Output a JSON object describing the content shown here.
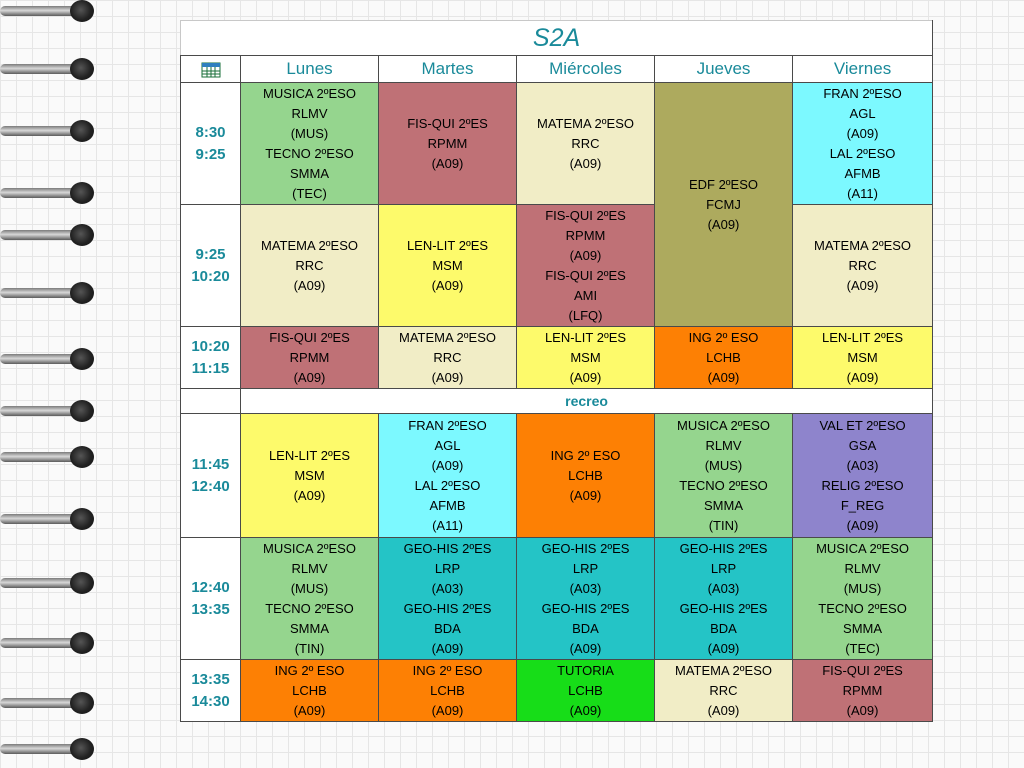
{
  "title": "S2A",
  "days": [
    "Lunes",
    "Martes",
    "Miércoles",
    "Jueves",
    "Viernes"
  ],
  "break_label": "recreo",
  "colors": {
    "green": "#95d58e",
    "rose": "#bf7176",
    "cream": "#f1edc6",
    "olive": "#adaa5e",
    "cyan": "#7cf9ff",
    "yellow": "#fdfa6b",
    "orange": "#fd8004",
    "purple": "#8e84cc",
    "teal": "#24c4c6",
    "bright_green": "#17dd18",
    "accent": "#1a8a9a"
  },
  "rows": [
    {
      "time": [
        "8:30",
        "9:25"
      ],
      "cells": [
        {
          "color": "green",
          "lines": [
            "MUSICA 2ºESO",
            "RLMV",
            "(MUS)",
            "TECNO 2ºESO",
            "SMMA",
            "(TEC)"
          ]
        },
        {
          "color": "rose",
          "lines": [
            "FIS-QUI 2ºES",
            "RPMM",
            "(A09)"
          ]
        },
        {
          "color": "cream",
          "lines": [
            "MATEMA 2ºESO",
            "RRC",
            "(A09)"
          ]
        },
        {
          "color": "olive",
          "rowspan": 2,
          "lines": [
            "EDF 2ºESO",
            "FCMJ",
            "(A09)"
          ]
        },
        {
          "color": "cyan",
          "lines": [
            "FRAN 2ºESO",
            "AGL",
            "(A09)",
            "LAL 2ºESO",
            "AFMB",
            "(A11)"
          ]
        }
      ]
    },
    {
      "time": [
        "9:25",
        "10:20"
      ],
      "cells": [
        {
          "color": "cream",
          "lines": [
            "MATEMA 2ºESO",
            "RRC",
            "(A09)"
          ]
        },
        {
          "color": "yellow",
          "lines": [
            "LEN-LIT 2ºES",
            "MSM",
            "(A09)"
          ]
        },
        {
          "color": "rose",
          "lines": [
            "FIS-QUI 2ºES",
            "RPMM",
            "(A09)",
            "FIS-QUI 2ºES",
            "AMI",
            "(LFQ)"
          ]
        },
        {
          "color": "cream",
          "lines": [
            "MATEMA 2ºESO",
            "RRC",
            "(A09)"
          ]
        }
      ]
    },
    {
      "time": [
        "10:20",
        "11:15"
      ],
      "cells": [
        {
          "color": "rose",
          "lines": [
            "FIS-QUI 2ºES",
            "RPMM",
            "(A09)"
          ]
        },
        {
          "color": "cream",
          "lines": [
            "MATEMA 2ºESO",
            "RRC",
            "(A09)"
          ]
        },
        {
          "color": "yellow",
          "lines": [
            "LEN-LIT 2ºES",
            "MSM",
            "(A09)"
          ]
        },
        {
          "color": "orange",
          "lines": [
            "ING 2º ESO",
            "LCHB",
            "(A09)"
          ]
        },
        {
          "color": "yellow",
          "lines": [
            "LEN-LIT 2ºES",
            "MSM",
            "(A09)"
          ]
        }
      ]
    },
    {
      "time": [
        "11:45",
        "12:40"
      ],
      "cells": [
        {
          "color": "yellow",
          "lines": [
            "LEN-LIT 2ºES",
            "MSM",
            "(A09)"
          ]
        },
        {
          "color": "cyan",
          "lines": [
            "FRAN 2ºESO",
            "AGL",
            "(A09)",
            "LAL 2ºESO",
            "AFMB",
            "(A11)"
          ]
        },
        {
          "color": "orange",
          "lines": [
            "ING 2º ESO",
            "LCHB",
            "(A09)"
          ]
        },
        {
          "color": "green",
          "lines": [
            "MUSICA 2ºESO",
            "RLMV",
            "(MUS)",
            "TECNO 2ºESO",
            "SMMA",
            "(TIN)"
          ]
        },
        {
          "color": "purple",
          "lines": [
            "VAL ET 2ºESO",
            "GSA",
            "(A03)",
            "RELIG 2ºESO",
            "F_REG",
            "(A09)"
          ]
        }
      ]
    },
    {
      "time": [
        "12:40",
        "13:35"
      ],
      "cells": [
        {
          "color": "green",
          "lines": [
            "MUSICA 2ºESO",
            "RLMV",
            "(MUS)",
            "TECNO 2ºESO",
            "SMMA",
            "(TIN)"
          ]
        },
        {
          "color": "teal",
          "lines": [
            "GEO-HIS 2ºES",
            "LRP",
            "(A03)",
            "GEO-HIS 2ºES",
            "BDA",
            "(A09)"
          ]
        },
        {
          "color": "teal",
          "lines": [
            "GEO-HIS 2ºES",
            "LRP",
            "(A03)",
            "GEO-HIS 2ºES",
            "BDA",
            "(A09)"
          ]
        },
        {
          "color": "teal",
          "lines": [
            "GEO-HIS 2ºES",
            "LRP",
            "(A03)",
            "GEO-HIS 2ºES",
            "BDA",
            "(A09)"
          ]
        },
        {
          "color": "green",
          "lines": [
            "MUSICA 2ºESO",
            "RLMV",
            "(MUS)",
            "TECNO 2ºESO",
            "SMMA",
            "(TEC)"
          ]
        }
      ]
    },
    {
      "time": [
        "13:35",
        "14:30"
      ],
      "cells": [
        {
          "color": "orange",
          "lines": [
            "ING 2º ESO",
            "LCHB",
            "(A09)"
          ]
        },
        {
          "color": "orange",
          "lines": [
            "ING 2º ESO",
            "LCHB",
            "(A09)"
          ]
        },
        {
          "color": "bright_green",
          "lines": [
            "TUTORIA",
            "LCHB",
            "(A09)"
          ]
        },
        {
          "color": "cream",
          "lines": [
            "MATEMA 2ºESO",
            "RRC",
            "(A09)"
          ]
        },
        {
          "color": "rose",
          "lines": [
            "FIS-QUI 2ºES",
            "RPMM",
            "(A09)"
          ]
        }
      ]
    }
  ]
}
